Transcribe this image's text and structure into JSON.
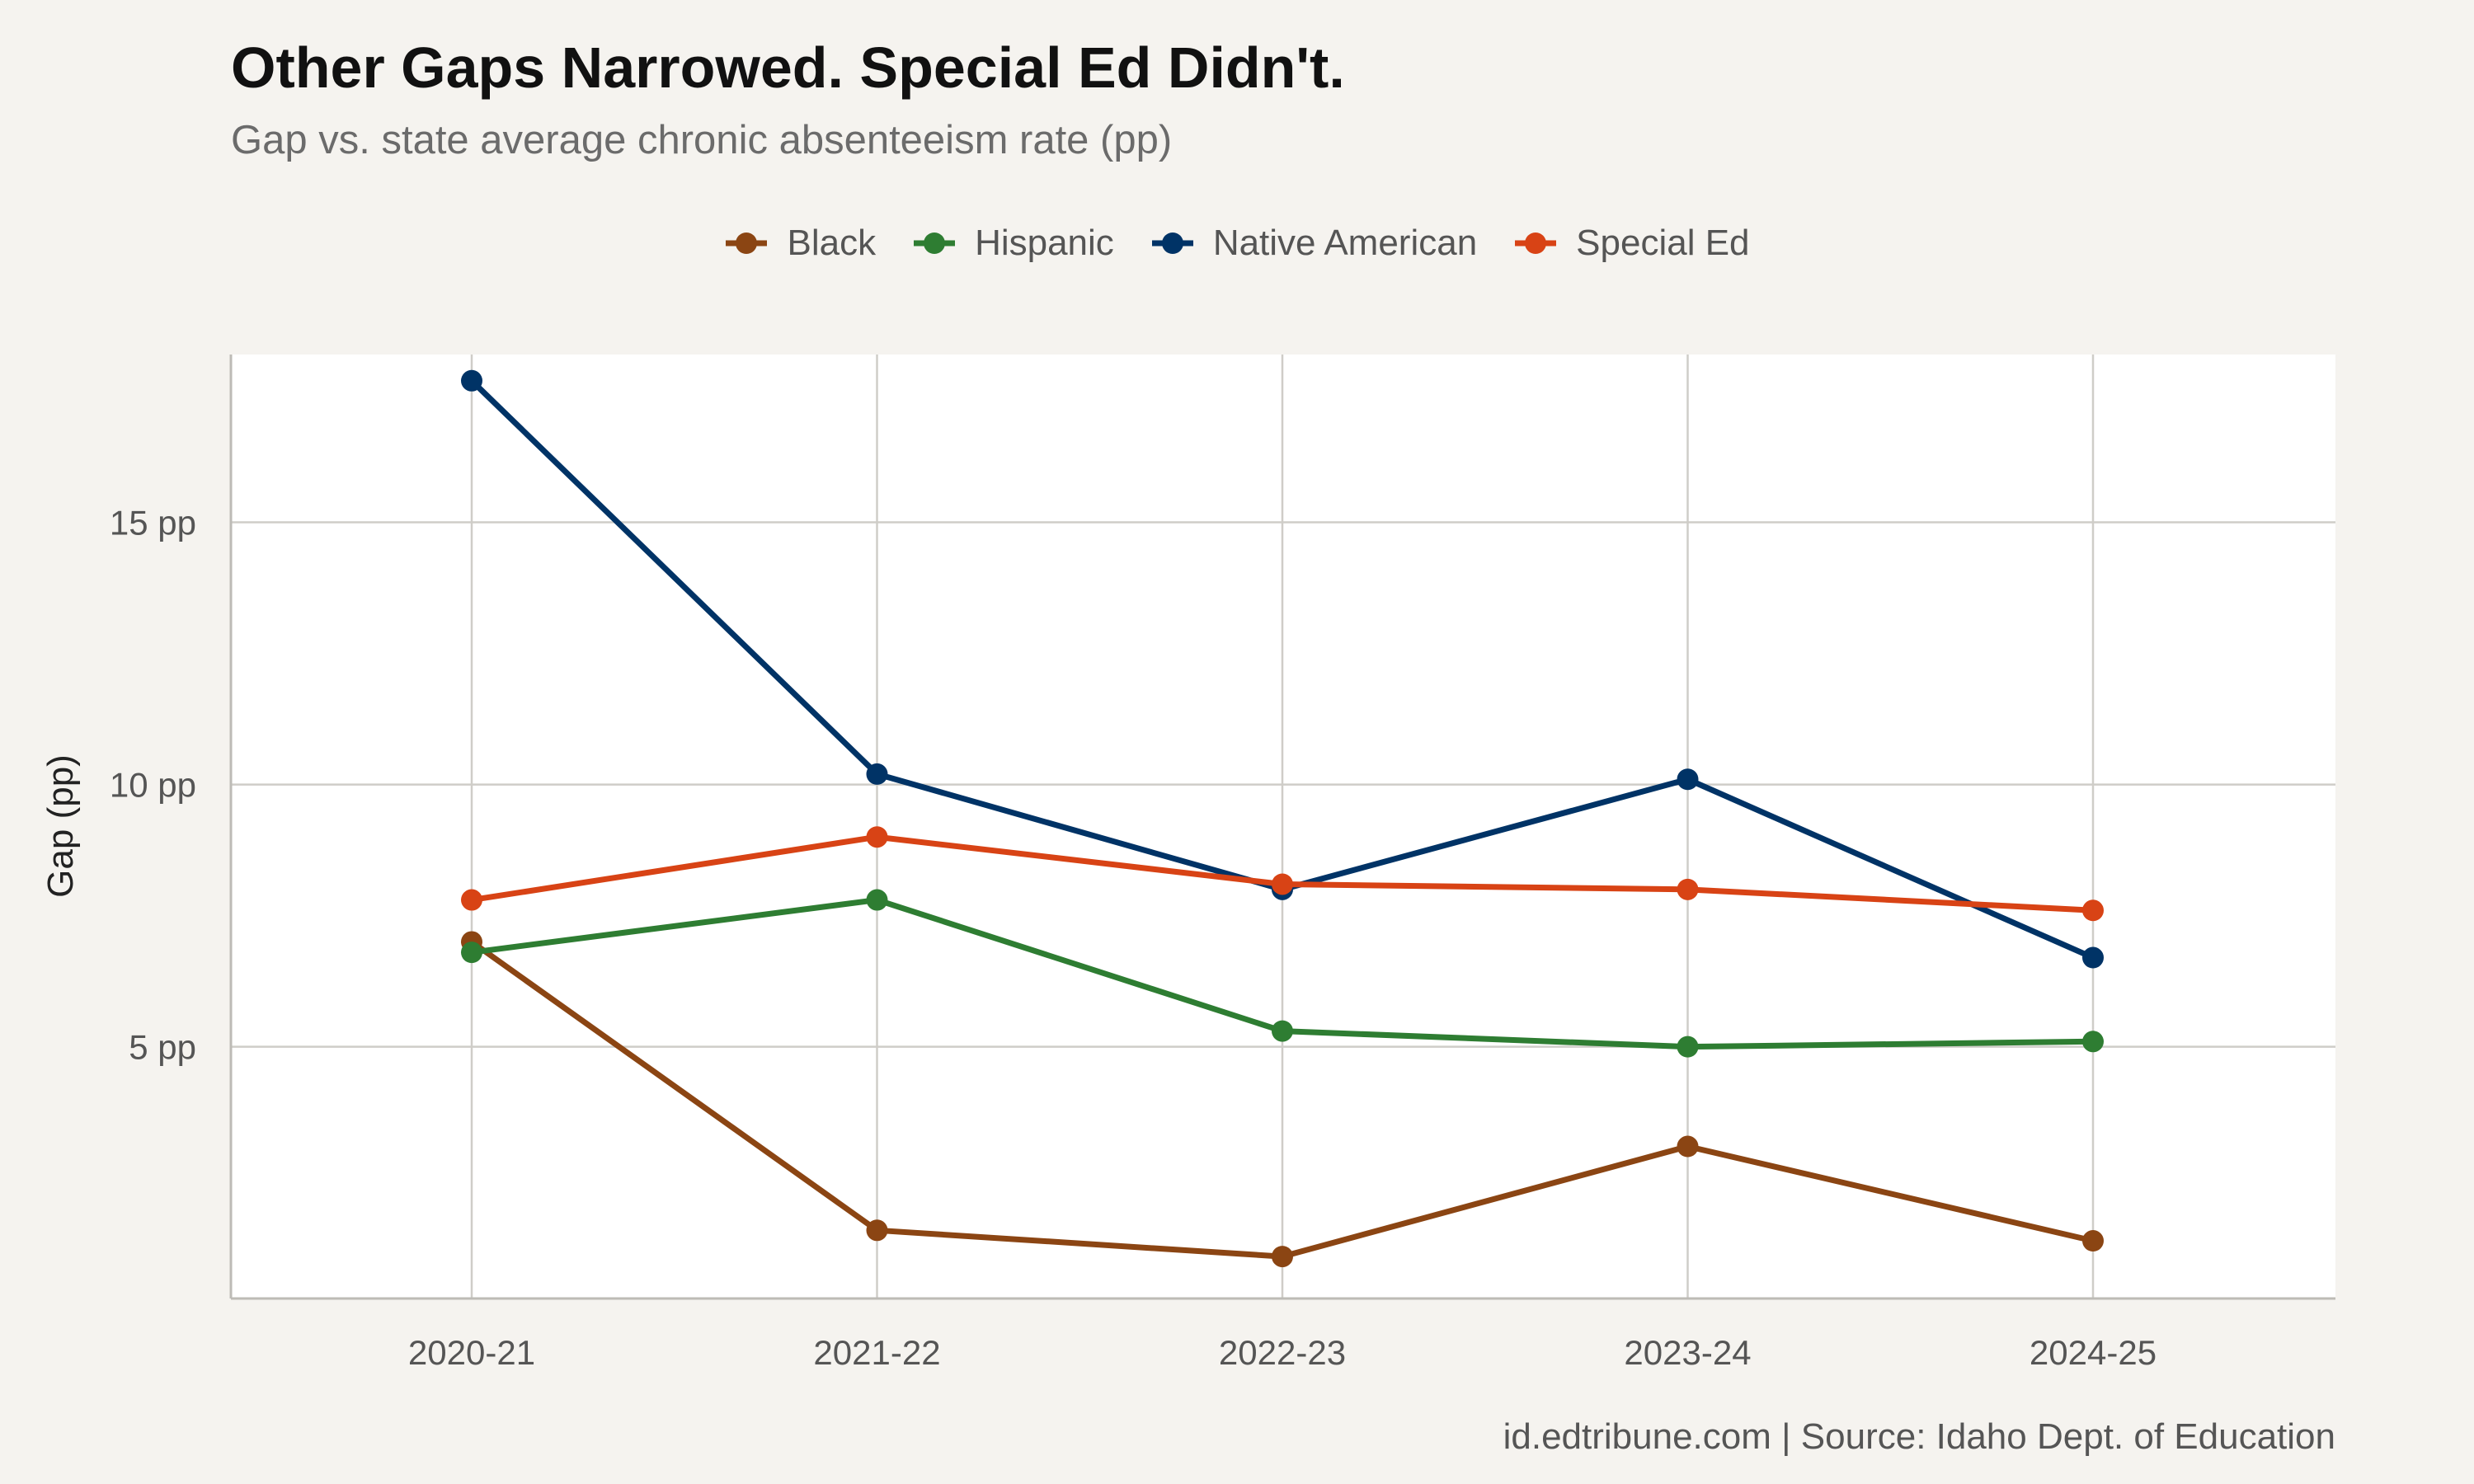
{
  "chart_data": {
    "type": "line",
    "title": "Other Gaps Narrowed. Special Ed Didn't.",
    "subtitle": "Gap vs. state average chronic absenteeism rate (pp)",
    "xlabel": "",
    "ylabel": "Gap (pp)",
    "categories": [
      "2020-21",
      "2021-22",
      "2022-23",
      "2023-24",
      "2024-25"
    ],
    "y_ticks": [
      5,
      10,
      15
    ],
    "y_tick_labels": [
      "5 pp",
      "10 pp",
      "15 pp"
    ],
    "ylim": [
      0.2,
      18.2
    ],
    "grid": true,
    "legend_position": "top",
    "series": [
      {
        "name": "Black",
        "color": "#8b4513",
        "values": [
          7.0,
          1.5,
          1.0,
          3.1,
          1.3
        ]
      },
      {
        "name": "Hispanic",
        "color": "#2e7d32",
        "values": [
          6.8,
          7.8,
          5.3,
          5.0,
          5.1
        ]
      },
      {
        "name": "Native American",
        "color": "#003366",
        "values": [
          17.7,
          10.2,
          8.0,
          10.1,
          6.7
        ]
      },
      {
        "name": "Special Ed",
        "color": "#d84315",
        "values": [
          7.8,
          9.0,
          8.1,
          8.0,
          7.6
        ]
      }
    ],
    "caption": "id.edtribune.com | Source: Idaho Dept. of Education"
  }
}
